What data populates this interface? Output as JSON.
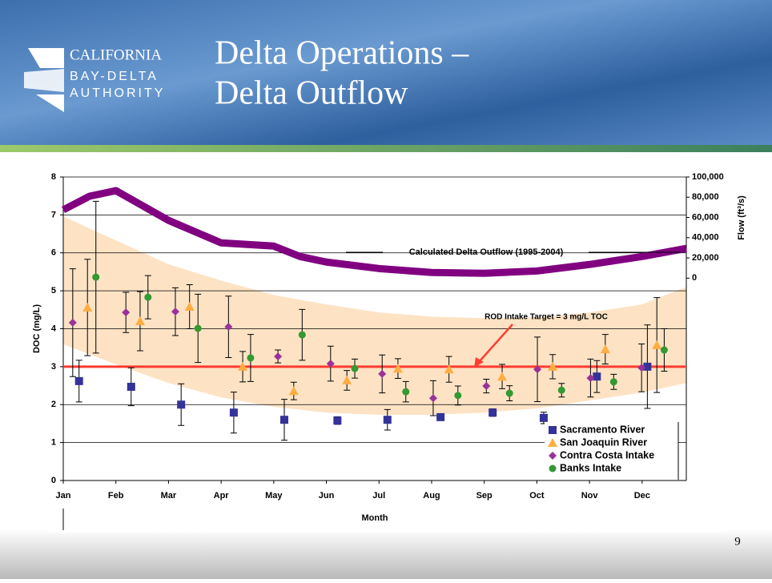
{
  "slide": {
    "title": [
      "Delta Operations –",
      "Delta Outflow"
    ],
    "logo": [
      "CALIFORNIA",
      "BAY-DELTA",
      "AUTHORITY"
    ],
    "page_number": 9
  },
  "chart_data": {
    "type": "scatter",
    "x_label": "Month",
    "y_label": "DOC (mg/L)",
    "y2_label": "Flow (ft³/s)",
    "xlim": [
      1,
      12.84
    ],
    "xticks": [
      {
        "value": 1,
        "label": "Jan"
      },
      {
        "value": 2,
        "label": "Feb"
      },
      {
        "value": 3,
        "label": "Mar"
      },
      {
        "value": 4,
        "label": "Apr"
      },
      {
        "value": 5,
        "label": "May"
      },
      {
        "value": 6,
        "label": "Jun"
      },
      {
        "value": 7,
        "label": "Jul"
      },
      {
        "value": 8,
        "label": "Aug"
      },
      {
        "value": 9,
        "label": "Sep"
      },
      {
        "value": 10,
        "label": "Oct"
      },
      {
        "value": 11,
        "label": "Nov"
      },
      {
        "value": 12,
        "label": "Dec"
      }
    ],
    "ylim": [
      0,
      8
    ],
    "yticks": [
      0,
      1,
      2,
      3,
      4,
      5,
      6,
      7,
      8
    ],
    "y2lim": [
      -200000,
      100000
    ],
    "y2ticks": [
      0,
      {
        "value": 20000,
        "label": "20,000"
      },
      {
        "value": 40000,
        "label": "40,000"
      },
      {
        "value": 60000,
        "label": "60,000"
      },
      {
        "value": 80000,
        "label": "80,000"
      },
      {
        "value": 100000,
        "label": "100,000"
      }
    ],
    "grid": true,
    "series": [
      {
        "name": "Sacramento River",
        "color": "#333399",
        "marker": "square",
        "x": [
          1.3,
          2.29,
          3.24,
          4.24,
          5.2,
          6.21,
          7.16,
          8.17,
          9.16,
          10.13,
          11.14,
          12.1
        ],
        "values": [
          2.62,
          2.47,
          2.0,
          1.79,
          1.6,
          1.58,
          1.6,
          1.67,
          1.79,
          1.65,
          2.74,
          3.0
        ],
        "errors": [
          0.55,
          0.5,
          0.55,
          0.54,
          0.54,
          0.1,
          0.27,
          0.05,
          0.1,
          0.15,
          0.42,
          1.1
        ]
      },
      {
        "name": "San Joaquin River",
        "color": "#ffad42",
        "marker": "triangle",
        "x": [
          1.46,
          2.46,
          3.4,
          4.41,
          5.38,
          6.39,
          7.36,
          8.33,
          9.34,
          10.3,
          11.3,
          12.28
        ],
        "values": [
          4.56,
          4.2,
          4.58,
          3.0,
          2.36,
          2.64,
          2.95,
          2.93,
          2.74,
          3.0,
          3.46,
          3.57
        ],
        "errors": [
          1.27,
          0.78,
          0.58,
          0.4,
          0.23,
          0.26,
          0.26,
          0.34,
          0.32,
          0.32,
          0.39,
          1.25
        ]
      },
      {
        "name": "Contra Costa Intake",
        "color": "#993399",
        "marker": "diamond",
        "x": [
          1.18,
          2.19,
          3.13,
          4.14,
          5.08,
          6.08,
          7.06,
          8.03,
          9.04,
          10.01,
          11.02,
          11.99
        ],
        "values": [
          4.16,
          4.43,
          4.45,
          4.05,
          3.27,
          3.08,
          2.81,
          2.17,
          2.49,
          2.93,
          2.7,
          2.97
        ],
        "errors": [
          1.42,
          0.53,
          0.63,
          0.81,
          0.17,
          0.46,
          0.5,
          0.46,
          0.18,
          0.85,
          0.5,
          0.63
        ]
      },
      {
        "name": "Banks Intake",
        "color": "#339933",
        "marker": "circle",
        "x": [
          1.62,
          2.61,
          3.56,
          4.56,
          5.54,
          6.54,
          7.51,
          8.5,
          9.48,
          10.47,
          11.46,
          12.42
        ],
        "values": [
          5.36,
          4.83,
          4.01,
          3.23,
          3.84,
          2.95,
          2.34,
          2.24,
          2.3,
          2.38,
          2.6,
          3.44
        ],
        "errors": [
          2.0,
          0.57,
          0.9,
          0.62,
          0.67,
          0.25,
          0.27,
          0.25,
          0.2,
          0.18,
          0.2,
          0.56
        ]
      }
    ],
    "outflow": {
      "name": "Calculated Delta Outflow (1995-2004)",
      "color": "#800080",
      "axis": "y2",
      "x": [
        1,
        1.5,
        2,
        3,
        4,
        4.5,
        5,
        5.5,
        6,
        7,
        8,
        9,
        10,
        11,
        12,
        12.84
      ],
      "values": [
        67500,
        81000,
        86500,
        57100,
        34900,
        33300,
        31700,
        21400,
        15900,
        9500,
        5600,
        4800,
        7100,
        13500,
        21400,
        29400
      ]
    },
    "band": {
      "color": "#fde3c4",
      "x": [
        1,
        2,
        3,
        4,
        5,
        6,
        7,
        8,
        9,
        10,
        11,
        12,
        12.84
      ],
      "upper": [
        6.96,
        6.33,
        5.7,
        5.27,
        4.89,
        4.64,
        4.43,
        4.32,
        4.28,
        4.3,
        4.43,
        4.64,
        5.1
      ],
      "lower": [
        3.59,
        3.06,
        2.57,
        2.19,
        1.94,
        1.79,
        1.73,
        1.73,
        1.79,
        1.9,
        2.11,
        2.32,
        2.57
      ]
    },
    "target": {
      "label": "ROD Intake Target = 3 mg/L TOC",
      "value": 3,
      "color": "#ff3b30"
    }
  }
}
